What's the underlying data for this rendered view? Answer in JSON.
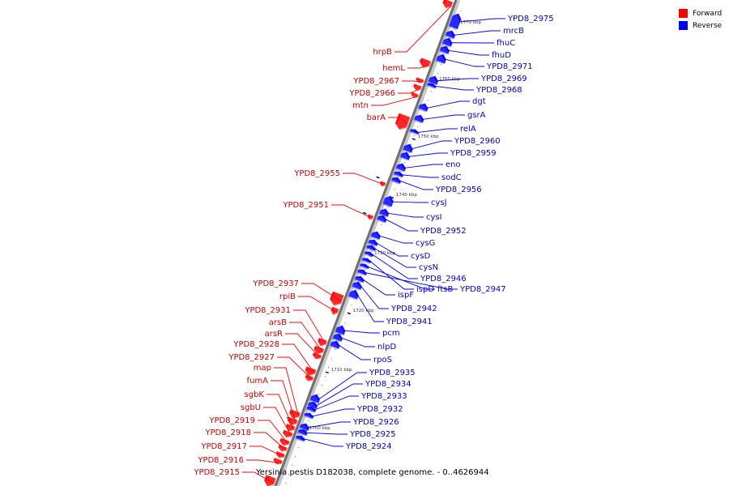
{
  "legend": {
    "forward_label": "Forward",
    "reverse_label": "Reverse",
    "forward_color": "#ff0000",
    "reverse_color": "#0000ff"
  },
  "caption": "Yersinia pestis D182038, complete genome. - 0..4626944",
  "scale_marks": [
    "1770 kbp",
    "1760 kbp",
    "1750 kbp",
    "1740 kbp",
    "1730 kbp",
    "1720 kbp",
    "1710 kbp",
    "1700 kbp"
  ],
  "forward_genes": [
    "hrpB",
    "hemL",
    "YPD8_2967",
    "YPD8_2966",
    "mtn",
    "barA",
    "YPD8_2955",
    "YPD8_2951",
    "YPD8_2937",
    "rpiB",
    "YPD8_2931",
    "arsB",
    "arsR",
    "YPD8_2928",
    "YPD8_2927",
    "map",
    "fumA",
    "sgbK",
    "sgbU",
    "YPD8_2919",
    "YPD8_2918",
    "YPD8_2917",
    "YPD8_2916",
    "YPD8_2915"
  ],
  "reverse_genes": [
    "YPD8_2975",
    "mrcB",
    "fhuC",
    "fhuD",
    "YPD8_2971",
    "YPD8_2969",
    "YPD8_2968",
    "dgt",
    "gsrA",
    "relA",
    "YPD8_2960",
    "YPD8_2959",
    "eno",
    "sodC",
    "YPD8_2956",
    "cysJ",
    "cysI",
    "YPD8_2952",
    "cysG",
    "cysD",
    "cysN",
    "YPD8_2946",
    "ispD",
    "ftsB",
    "YPD8_2947",
    "ispF",
    "YPD8_2942",
    "YPD8_2941",
    "pcm",
    "nlpD",
    "rpoS",
    "YPD8_2935",
    "YPD8_2934",
    "YPD8_2933",
    "YPD8_2932",
    "YPD8_2926",
    "YPD8_2925",
    "YPD8_2924"
  ]
}
